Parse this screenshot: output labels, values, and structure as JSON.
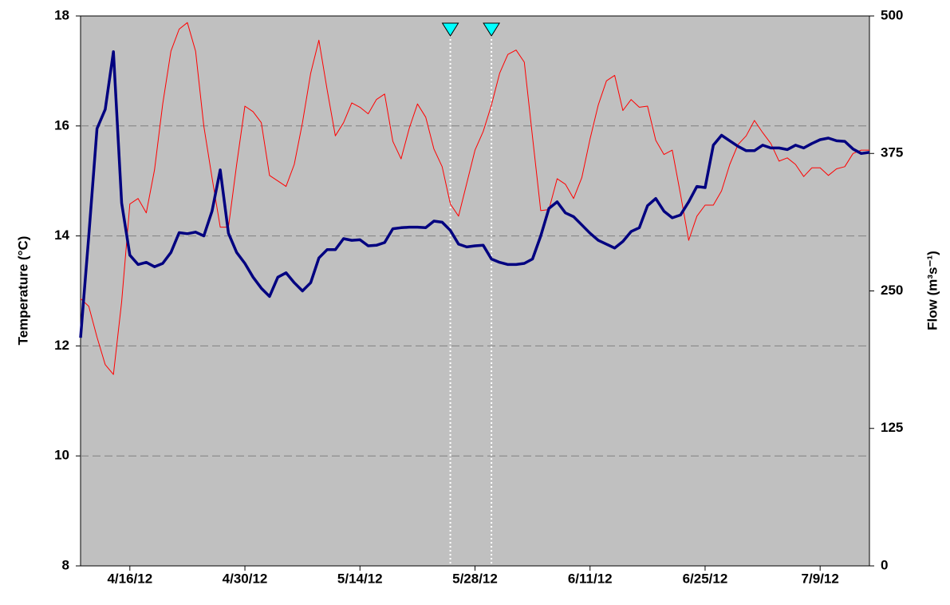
{
  "chart_data": {
    "type": "line",
    "y_label": "Temperature (°C)",
    "y2_label": "Flow (m³s⁻¹)",
    "x": [
      "2012-04-10",
      "2012-04-11",
      "2012-04-12",
      "2012-04-13",
      "2012-04-14",
      "2012-04-15",
      "2012-04-16",
      "2012-04-17",
      "2012-04-18",
      "2012-04-19",
      "2012-04-20",
      "2012-04-21",
      "2012-04-22",
      "2012-04-23",
      "2012-04-24",
      "2012-04-25",
      "2012-04-26",
      "2012-04-27",
      "2012-04-28",
      "2012-04-29",
      "2012-04-30",
      "2012-05-01",
      "2012-05-02",
      "2012-05-03",
      "2012-05-04",
      "2012-05-05",
      "2012-05-06",
      "2012-05-07",
      "2012-05-08",
      "2012-05-09",
      "2012-05-10",
      "2012-05-11",
      "2012-05-12",
      "2012-05-13",
      "2012-05-14",
      "2012-05-15",
      "2012-05-16",
      "2012-05-17",
      "2012-05-18",
      "2012-05-19",
      "2012-05-20",
      "2012-05-21",
      "2012-05-22",
      "2012-05-23",
      "2012-05-24",
      "2012-05-25",
      "2012-05-26",
      "2012-05-27",
      "2012-05-28",
      "2012-05-29",
      "2012-05-30",
      "2012-05-31",
      "2012-06-01",
      "2012-06-02",
      "2012-06-03",
      "2012-06-04",
      "2012-06-05",
      "2012-06-06",
      "2012-06-07",
      "2012-06-08",
      "2012-06-09",
      "2012-06-10",
      "2012-06-11",
      "2012-06-12",
      "2012-06-13",
      "2012-06-14",
      "2012-06-15",
      "2012-06-16",
      "2012-06-17",
      "2012-06-18",
      "2012-06-19",
      "2012-06-20",
      "2012-06-21",
      "2012-06-22",
      "2012-06-23",
      "2012-06-24",
      "2012-06-25",
      "2012-06-26",
      "2012-06-27",
      "2012-06-28",
      "2012-06-29",
      "2012-06-30",
      "2012-07-01",
      "2012-07-02",
      "2012-07-03",
      "2012-07-04",
      "2012-07-05",
      "2012-07-06",
      "2012-07-07",
      "2012-07-08",
      "2012-07-09",
      "2012-07-10",
      "2012-07-11",
      "2012-07-12",
      "2012-07-13",
      "2012-07-14",
      "2012-07-15"
    ],
    "series": [
      {
        "color": "#000080",
        "axis": "y",
        "values": [
          12.15,
          14.0,
          15.95,
          16.3,
          17.35,
          14.6,
          13.65,
          13.48,
          13.52,
          13.44,
          13.5,
          13.7,
          14.06,
          14.04,
          14.07,
          14.0,
          14.45,
          15.2,
          14.05,
          13.7,
          13.5,
          13.25,
          13.05,
          12.9,
          13.25,
          13.33,
          13.15,
          13.0,
          13.15,
          13.6,
          13.75,
          13.75,
          13.95,
          13.92,
          13.93,
          13.82,
          13.83,
          13.88,
          14.13,
          14.15,
          14.16,
          14.16,
          14.15,
          14.27,
          14.25,
          14.1,
          13.85,
          13.8,
          13.82,
          13.83,
          13.58,
          13.52,
          13.48,
          13.48,
          13.5,
          13.58,
          14.0,
          14.5,
          14.62,
          14.42,
          14.35,
          14.2,
          14.05,
          13.92,
          13.85,
          13.78,
          13.9,
          14.08,
          14.15,
          14.55,
          14.68,
          14.45,
          14.33,
          14.38,
          14.62,
          14.9,
          14.88,
          15.65,
          15.83,
          15.73,
          15.63,
          15.55,
          15.55,
          15.65,
          15.6,
          15.6,
          15.57,
          15.65,
          15.6,
          15.68,
          15.75,
          15.78,
          15.73,
          15.72,
          15.58,
          15.5,
          15.52
        ]
      },
      {
        "color": "#ff0000",
        "axis": "y2",
        "values": [
          243,
          236,
          208,
          183,
          174,
          240,
          329,
          334,
          321,
          360,
          420,
          468,
          488,
          494,
          468,
          400,
          353,
          308,
          308,
          365,
          418,
          413,
          403,
          355,
          350,
          345,
          365,
          403,
          448,
          478,
          433,
          391,
          403,
          421,
          417,
          411,
          424,
          429,
          386,
          370,
          398,
          420,
          408,
          379,
          363,
          329,
          318,
          348,
          378,
          395,
          419,
          448,
          465,
          469,
          458,
          390,
          323,
          324,
          352,
          347,
          334,
          353,
          388,
          419,
          441,
          446,
          414,
          424,
          417,
          418,
          387,
          374,
          378,
          338,
          296,
          318,
          328,
          328,
          341,
          365,
          383,
          391,
          405,
          394,
          384,
          368,
          371,
          365,
          354,
          362,
          362,
          355,
          361,
          363,
          375,
          378,
          378
        ]
      }
    ],
    "markers": [
      "2012-05-25",
      "2012-05-30"
    ],
    "marker_color": "#00ffff",
    "xlim": [
      "2012-04-10",
      "2012-07-15"
    ],
    "xticks": [
      {
        "value": "2012-04-16",
        "label": "4/16/12"
      },
      {
        "value": "2012-04-30",
        "label": "4/30/12"
      },
      {
        "value": "2012-05-14",
        "label": "5/14/12"
      },
      {
        "value": "2012-05-28",
        "label": "5/28/12"
      },
      {
        "value": "2012-06-11",
        "label": "6/11/12"
      },
      {
        "value": "2012-06-25",
        "label": "6/25/12"
      },
      {
        "value": "2012-07-09",
        "label": "7/9/12"
      }
    ],
    "ylim": [
      8,
      18
    ],
    "yticks": [
      8,
      10,
      12,
      14,
      16,
      18
    ],
    "y2lim": [
      0,
      500
    ],
    "y2ticks": [
      0,
      125,
      250,
      375,
      500
    ],
    "grid": true,
    "background": "#c0c0c0"
  }
}
